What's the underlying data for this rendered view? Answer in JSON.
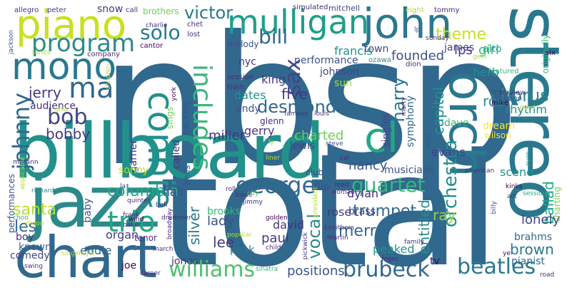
{
  "words": [
    {
      "text": "nbsp",
      "color": "#31688e"
    },
    {
      "text": "total",
      "color": "#31688e"
    },
    {
      "text": "billboard",
      "color": "#21918c"
    },
    {
      "text": "stereo",
      "color": "#2a788e"
    },
    {
      "text": "jazz",
      "color": "#2c8a8a"
    },
    {
      "text": "chart",
      "color": "#31688e"
    },
    {
      "text": "piano",
      "color": "#c8e020"
    },
    {
      "text": "orch",
      "color": "#2a788e"
    },
    {
      "text": "john",
      "color": "#2a788e"
    },
    {
      "text": "mulligan",
      "color": "#1f9e89"
    },
    {
      "text": "mono",
      "color": "#2a788e"
    },
    {
      "text": "program",
      "color": "#2c8a8a"
    },
    {
      "text": "man",
      "color": "#31688e"
    },
    {
      "text": "connie",
      "color": "#21918c"
    },
    {
      "text": "includes",
      "color": "#3bb77e"
    },
    {
      "text": "solo",
      "color": "#2a788e"
    },
    {
      "text": "cl",
      "color": "#22a884"
    },
    {
      "text": "williams",
      "color": "#4ac16d"
    },
    {
      "text": "brubeck",
      "color": "#31688e"
    },
    {
      "text": "beatles",
      "color": "#2a788e"
    },
    {
      "text": "johnny",
      "color": "#31688e"
    },
    {
      "text": "trio",
      "color": "#22a884"
    },
    {
      "text": "george",
      "color": "#31688e"
    },
    {
      "text": "quartet",
      "color": "#35b779"
    },
    {
      "text": "orchestra",
      "color": "#21918c"
    },
    {
      "text": "sax",
      "color": "#414487"
    },
    {
      "text": "bill",
      "color": "#31688e"
    },
    {
      "text": "theme",
      "color": "#c8e020"
    },
    {
      "text": "lps",
      "color": "#443983"
    },
    {
      "text": "girl",
      "color": "#35b779"
    },
    {
      "text": "chorus",
      "color": "#2c8a8a"
    },
    {
      "text": "victor",
      "color": "#2a788e"
    },
    {
      "text": "bob",
      "color": "#414487"
    },
    {
      "text": "bobby",
      "color": "#443983"
    },
    {
      "text": "columbia",
      "color": "#22a884"
    },
    {
      "text": "desmond",
      "color": "#31688e"
    },
    {
      "text": "five",
      "color": "#443983"
    },
    {
      "text": "harry",
      "color": "#2a788e"
    },
    {
      "text": "capitol",
      "color": "#21918c"
    },
    {
      "text": "rca",
      "color": "#2c8a8a"
    },
    {
      "text": "vocal",
      "color": "#2c8a8a"
    },
    {
      "text": "trumpet",
      "color": "#31688e"
    },
    {
      "text": "merry",
      "color": "#31688e"
    },
    {
      "text": "positions",
      "color": "#3b528b"
    },
    {
      "text": "lee",
      "color": "#443983"
    },
    {
      "text": "lady",
      "color": "#3b528b"
    },
    {
      "text": "les",
      "color": "#31688e"
    },
    {
      "text": "santa",
      "color": "#b5de2b"
    },
    {
      "text": "jerry",
      "color": "#443983"
    },
    {
      "text": "charted",
      "color": "#6ece58"
    },
    {
      "text": "miller",
      "color": "#46337e"
    },
    {
      "text": "gerry",
      "color": "#46327e"
    },
    {
      "text": "nancy",
      "color": "#3b528b"
    },
    {
      "text": "brown",
      "color": "#2a788e"
    },
    {
      "text": "entitled",
      "color": "#2c8a8a"
    },
    {
      "text": "silver",
      "color": "#2a788e"
    },
    {
      "text": "ballad",
      "color": "#22a884"
    },
    {
      "text": "lonely",
      "color": "#414487"
    },
    {
      "text": "brahms",
      "color": "#31688e"
    },
    {
      "text": "peaked",
      "color": "#21918c"
    },
    {
      "text": "ray",
      "color": "#90d743"
    },
    {
      "text": "dylan",
      "color": "#472d7b"
    },
    {
      "text": "brass",
      "color": "#443983"
    },
    {
      "text": "rose",
      "color": "#443983"
    },
    {
      "text": "hall",
      "color": "#3b528b"
    },
    {
      "text": "brooks",
      "color": "#35b779"
    },
    {
      "text": "david",
      "color": "#46327e"
    },
    {
      "text": "paul",
      "color": "#443983"
    },
    {
      "text": "dave",
      "color": "#35b779"
    },
    {
      "text": "evans",
      "color": "#414487"
    },
    {
      "text": "scene",
      "color": "#21918c"
    },
    {
      "text": "rhythm",
      "color": "#21918c"
    },
    {
      "text": "dream",
      "color": "#fde725"
    },
    {
      "text": "herb",
      "color": "#21918c"
    },
    {
      "text": "alto",
      "color": "#22a884"
    },
    {
      "text": "james",
      "color": "#414487"
    },
    {
      "text": "founded",
      "color": "#3b528b"
    },
    {
      "text": "francis",
      "color": "#21918c"
    },
    {
      "text": "performance",
      "color": "#3b528b"
    },
    {
      "text": "town",
      "color": "#414487"
    },
    {
      "text": "johnson",
      "color": "#414487"
    },
    {
      "text": "sun",
      "color": "#a0da39"
    },
    {
      "text": "king",
      "color": "#443983"
    },
    {
      "text": "nyc",
      "color": "#443983"
    },
    {
      "text": "dates",
      "color": "#21918c"
    },
    {
      "text": "andy",
      "color": "#3b528b"
    },
    {
      "text": "glenn",
      "color": "#472d7b"
    },
    {
      "text": "lewis",
      "color": "#414487"
    },
    {
      "text": "singles",
      "color": "#414487"
    },
    {
      "text": "symphony",
      "color": "#31688e"
    },
    {
      "text": "melody",
      "color": "#3b528b"
    },
    {
      "text": "audience",
      "color": "#46327e"
    },
    {
      "text": "garner",
      "color": "#443983"
    },
    {
      "text": "sonny",
      "color": "#b5de2b"
    },
    {
      "text": "sings",
      "color": "#6ece58"
    },
    {
      "text": "backing",
      "color": "#3b528b"
    },
    {
      "text": "called",
      "color": "#443983"
    },
    {
      "text": "bells",
      "color": "#3b528b"
    },
    {
      "text": "organ",
      "color": "#443983"
    },
    {
      "text": "eddie",
      "color": "#31688e"
    },
    {
      "text": "comedy",
      "color": "#414487"
    },
    {
      "text": "boy",
      "color": "#46327e"
    },
    {
      "text": "known",
      "color": "#31688e"
    },
    {
      "text": "baby",
      "color": "#3b528b"
    },
    {
      "text": "tenor",
      "color": "#472d7b"
    },
    {
      "text": "jones",
      "color": "#46337e"
    },
    {
      "text": "joe",
      "color": "#440154"
    },
    {
      "text": "peak",
      "color": "#2a788e"
    },
    {
      "text": "tv",
      "color": "#440154"
    },
    {
      "text": "pianist",
      "color": "#31688e"
    },
    {
      "text": "musicians",
      "color": "#3b528b"
    },
    {
      "text": "club",
      "color": "#414487"
    },
    {
      "text": "flip",
      "color": "#3b528b"
    },
    {
      "text": "snow",
      "color": "#443983"
    },
    {
      "text": "mitchell",
      "color": "#414487"
    },
    {
      "text": "brothers",
      "color": "#6ece58"
    },
    {
      "text": "charting",
      "color": "#7ad151"
    },
    {
      "text": "originally",
      "color": "#35b779"
    },
    {
      "text": "wilson",
      "color": "#fde725"
    },
    {
      "text": "performances",
      "color": "#3b528b"
    },
    {
      "text": "allegro",
      "color": "#443983"
    },
    {
      "text": "peter",
      "color": "#443983"
    },
    {
      "text": "call",
      "color": "#46327e"
    },
    {
      "text": "chet",
      "color": "#472d7b"
    },
    {
      "text": "simulated",
      "color": "#472d7b"
    },
    {
      "text": "eight",
      "color": "#b5de2b"
    },
    {
      "text": "tommy",
      "color": "#472d7b"
    },
    {
      "text": "charlie",
      "color": "#472d7b"
    },
    {
      "text": "lost",
      "color": "#472d7b"
    },
    {
      "text": "cantor",
      "color": "#440154"
    },
    {
      "text": "company",
      "color": "#472d7b"
    },
    {
      "text": "series",
      "color": "#b5de2b"
    },
    {
      "text": "jackson",
      "color": "#3b528b"
    },
    {
      "text": "session",
      "color": "#472d7b"
    },
    {
      "text": "train",
      "color": "#472d7b"
    },
    {
      "text": "children",
      "color": "#b5de2b"
    },
    {
      "text": "ozawa",
      "color": "#2c8a8a"
    },
    {
      "text": "sunday",
      "color": "#472d7b"
    },
    {
      "text": "gets",
      "color": "#b5de2b"
    },
    {
      "text": "featured",
      "color": "#35b779"
    },
    {
      "text": "six",
      "color": "#440154"
    },
    {
      "text": "dion",
      "color": "#46327e"
    },
    {
      "text": "interview",
      "color": "#472d7b"
    },
    {
      "text": "harrison",
      "color": "#3b528b"
    },
    {
      "text": "mike",
      "color": "#440154"
    },
    {
      "text": "marty",
      "color": "#472d7b"
    },
    {
      "text": "third",
      "color": "#b5de2b"
    },
    {
      "text": "york",
      "color": "#440154"
    },
    {
      "text": "famous",
      "color": "#472d7b"
    },
    {
      "text": "louis",
      "color": "#472d7b"
    },
    {
      "text": "gold",
      "color": "#b5de2b"
    },
    {
      "text": "mccann",
      "color": "#472d7b"
    },
    {
      "text": "la",
      "color": "#472d7b"
    },
    {
      "text": "quintet",
      "color": "#472d7b"
    },
    {
      "text": "bell",
      "color": "#472d7b"
    },
    {
      "text": "drummer",
      "color": "#472d7b"
    },
    {
      "text": "richard",
      "color": "#2c8a8a"
    },
    {
      "text": "choo",
      "color": "#35b779"
    },
    {
      "text": "frank",
      "color": "#472d7b"
    },
    {
      "text": "wind",
      "color": "#440154"
    },
    {
      "text": "baker",
      "color": "#472d7b"
    },
    {
      "text": "moon",
      "color": "#b5de2b"
    },
    {
      "text": "singers jfk",
      "color": "#b5de2b"
    },
    {
      "text": "march",
      "color": "#472d7b"
    },
    {
      "text": "swing",
      "color": "#46327e"
    },
    {
      "text": "career",
      "color": "#472d7b"
    },
    {
      "text": "broadway",
      "color": "#472d7b"
    },
    {
      "text": "popular",
      "color": "#b5de2b"
    },
    {
      "text": "child",
      "color": "#472d7b"
    },
    {
      "text": "sinatra",
      "color": "#35b779"
    },
    {
      "text": "golden",
      "color": "#440154"
    },
    {
      "text": "smothers",
      "color": "#472d7b"
    },
    {
      "text": "martin",
      "color": "#472d7b"
    },
    {
      "text": "family",
      "color": "#472d7b"
    },
    {
      "text": "mgm",
      "color": "#472d7b"
    },
    {
      "text": "pickwick",
      "color": "#46327e"
    },
    {
      "text": "roll",
      "color": "#472d7b"
    },
    {
      "text": "basie",
      "color": "#472d7b"
    },
    {
      "text": "city",
      "color": "#6ece58"
    },
    {
      "text": "jimmy",
      "color": "#472d7b"
    },
    {
      "text": "liner",
      "color": "#b5de2b"
    },
    {
      "text": "president",
      "color": "#b5de2b"
    },
    {
      "text": "woman",
      "color": "#472d7b"
    },
    {
      "text": "reed",
      "color": "#472d7b"
    },
    {
      "text": "steve",
      "color": "#3b528b"
    },
    {
      "text": "cal",
      "color": "#472d7b"
    },
    {
      "text": "tony",
      "color": "#3b528b"
    },
    {
      "text": "american",
      "color": "#472d7b"
    },
    {
      "text": "billy",
      "color": "#3b528b"
    },
    {
      "text": "kinks",
      "color": "#440154"
    },
    {
      "text": "act",
      "color": "#472d7b"
    },
    {
      "text": "sessions",
      "color": "#22a884"
    },
    {
      "text": "ye",
      "color": "#440154"
    },
    {
      "text": "road",
      "color": "#472d7b"
    },
    {
      "text": "eyes",
      "color": "#22a884"
    },
    {
      "text": "applicable",
      "color": "#b5de2b"
    },
    {
      "text": "ly",
      "color": "#b5de2b"
    },
    {
      "text": "lp",
      "color": "#3b528b"
    }
  ]
}
